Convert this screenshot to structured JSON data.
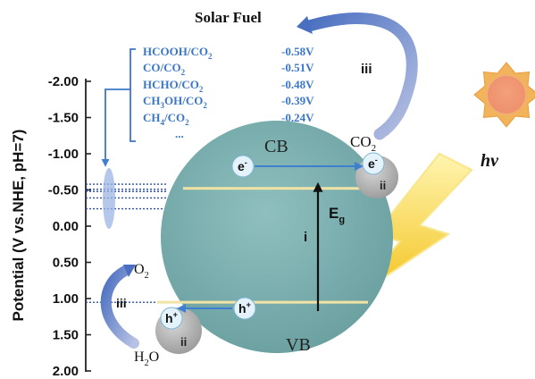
{
  "title": "Solar Fuel",
  "axis": {
    "label": "Potential (V vs.NHE, pH=7)",
    "ticks": [
      "-2.00",
      "-1.50",
      "-1.00",
      "-0.50",
      "0.00",
      "0.50",
      "1.00",
      "1.50",
      "2.00"
    ],
    "range": [
      -2.0,
      2.0
    ]
  },
  "couples": [
    {
      "pre": "HCOOH/CO",
      "sub": "2",
      "post": "",
      "potential": "-0.58V",
      "value": -0.58
    },
    {
      "pre": "CO/CO",
      "sub": "2",
      "post": "",
      "potential": "-0.51V",
      "value": -0.51
    },
    {
      "pre": "HCHO/CO",
      "sub": "2",
      "post": "",
      "potential": "-0.48V",
      "value": -0.48
    },
    {
      "pre": "CH",
      "sub": "3",
      "post": "OH/CO",
      "sub2": "2",
      "potential": "-0.39V",
      "value": -0.39
    },
    {
      "pre": "CH",
      "sub": "4",
      "post": "/CO",
      "sub2": "2",
      "potential": "-0.24V",
      "value": -0.24
    }
  ],
  "ellipsis": "...",
  "levels": {
    "cb": -0.51,
    "vb": 1.15
  },
  "labels": {
    "cb": "CB",
    "vb": "VB",
    "electron": "e",
    "electron_sup": "-",
    "hole": "h",
    "hole_sup": "+",
    "eg": "E",
    "eg_sub": "g",
    "hv": "hv",
    "co2": "CO",
    "co2_sub": "2",
    "o2": "O",
    "o2_sub": "2",
    "h2o": "H",
    "h2o_sub": "2",
    "h2o_post": "O",
    "step_i": "i",
    "step_ii": "ii",
    "step_iii": "iii"
  },
  "colors": {
    "text_blue": "#3b77c7",
    "sphere": "#76aeae",
    "band": "#f1e3a6",
    "arrow_blue": "#3f7fcf",
    "curved_arrow": "#8b9ac7",
    "sun": "#f2a54a",
    "sun_core": "#ef9a76",
    "bolt": "#f6c51c",
    "hole_grey": "#a5a5a5"
  },
  "icons": {
    "sun": "sun-icon",
    "lightning": "lightning-bolt-icon"
  }
}
